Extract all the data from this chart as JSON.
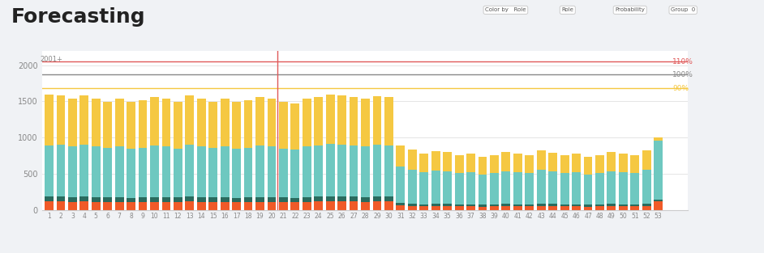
{
  "title": "Forecasting",
  "title_fontsize": 18,
  "background_color": "#f0f2f5",
  "plot_bg_color": "#ffffff",
  "n_bars": 53,
  "x_labels": [
    "1",
    "2",
    "3",
    "4",
    "5",
    "6",
    "7",
    "8",
    "9",
    "10",
    "11",
    "12",
    "13",
    "14",
    "15",
    "16",
    "17",
    "18",
    "19",
    "20",
    "21",
    "22",
    "23",
    "24",
    "25",
    "26",
    "27",
    "28",
    "29",
    "30",
    "31",
    "32",
    "33",
    "34",
    "35",
    "36",
    "37",
    "38",
    "39",
    "40",
    "41",
    "42",
    "43",
    "44",
    "45",
    "46",
    "47",
    "48",
    "49",
    "50",
    "51",
    "52",
    "53"
  ],
  "colors": {
    "orange_red": "#f05a28",
    "dark_teal": "#2a6b5e",
    "light_teal": "#6ec8c0",
    "yellow": "#f5c842",
    "line_110": "#e05a5a",
    "line_100": "#888888",
    "line_90": "#f5c842",
    "vline": "#e05a5a"
  },
  "ylim": [
    0,
    2200
  ],
  "yticks": [
    0,
    500,
    1000,
    1500,
    2000
  ],
  "yticklabels": [
    "0",
    "500",
    "1000",
    "1500",
    "2000"
  ],
  "hline_110": 2050,
  "hline_100": 1870,
  "hline_90": 1680,
  "hline_label_110": "110%",
  "hline_label_100": "100%",
  "hline_label_90": "90%",
  "vline_x": 20,
  "layer1": [
    120,
    115,
    110,
    115,
    112,
    108,
    110,
    105,
    108,
    112,
    110,
    108,
    115,
    112,
    108,
    110,
    105,
    108,
    112,
    110,
    108,
    105,
    112,
    115,
    120,
    118,
    115,
    112,
    118,
    115,
    60,
    55,
    50,
    55,
    52,
    48,
    50,
    45,
    48,
    52,
    50,
    48,
    55,
    52,
    48,
    50,
    45,
    48,
    52,
    50,
    48,
    55,
    120
  ],
  "layer2": [
    70,
    68,
    65,
    68,
    66,
    64,
    65,
    63,
    64,
    66,
    65,
    63,
    68,
    66,
    64,
    65,
    63,
    64,
    66,
    65,
    63,
    62,
    66,
    68,
    70,
    69,
    68,
    66,
    69,
    68,
    35,
    32,
    30,
    32,
    31,
    29,
    30,
    28,
    29,
    31,
    30,
    29,
    32,
    31,
    29,
    30,
    28,
    29,
    31,
    30,
    29,
    32,
    20
  ],
  "layer3": [
    700,
    720,
    700,
    720,
    700,
    680,
    700,
    680,
    690,
    710,
    700,
    680,
    720,
    700,
    680,
    700,
    680,
    690,
    710,
    700,
    680,
    670,
    700,
    710,
    720,
    715,
    710,
    700,
    710,
    710,
    500,
    470,
    440,
    460,
    450,
    430,
    440,
    420,
    430,
    450,
    440,
    430,
    470,
    450,
    430,
    440,
    420,
    430,
    450,
    440,
    430,
    470,
    820
  ],
  "layer4": [
    700,
    680,
    660,
    680,
    660,
    640,
    660,
    640,
    650,
    670,
    660,
    640,
    680,
    660,
    640,
    660,
    640,
    650,
    670,
    660,
    640,
    630,
    660,
    670,
    680,
    675,
    670,
    660,
    670,
    670,
    300,
    280,
    260,
    270,
    265,
    250,
    260,
    245,
    250,
    265,
    260,
    250,
    270,
    260,
    250,
    260,
    245,
    250,
    265,
    260,
    250,
    270,
    40
  ]
}
